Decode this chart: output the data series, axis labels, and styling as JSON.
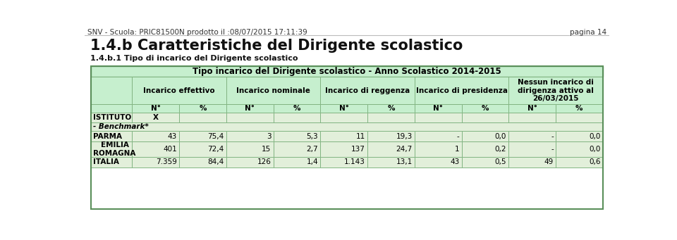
{
  "header_top": "SNV - Scuola: PRIC81500N prodotto il :08/07/2015 17:11:39",
  "header_right": "pagina 14",
  "title1": "1.4.b Caratteristiche del Dirigente scolastico",
  "title2": "1.4.b.1 Tipo di incarico del Dirigente scolastico",
  "table_title": "Tipo incarico del Dirigente scolastico - Anno Scolastico 2014-2015",
  "col_headers": [
    "",
    "Incarico effettivo",
    "Incarico nominale",
    "Incarico di reggenza",
    "Incarico di presidenza",
    "Nessun incarico di\ndirigenza attivo al\n26/03/2015"
  ],
  "sub_headers": [
    "N°",
    "%",
    "N°",
    "%",
    "N°",
    "%",
    "N°",
    "%",
    "N°",
    "%"
  ],
  "istituto_row": [
    "ISTITUTO",
    "X"
  ],
  "benchmark_row": [
    "- Benchmark*"
  ],
  "data_rows": [
    [
      "PARMA",
      "43",
      "75,4",
      "3",
      "5,3",
      "11",
      "19,3",
      "-",
      "0,0",
      "-",
      "0,0"
    ],
    [
      "EMILIA\nROMAGNA",
      "401",
      "72,4",
      "15",
      "2,7",
      "137",
      "24,7",
      "1",
      "0,2",
      "-",
      "0,0"
    ],
    [
      "ITALIA",
      "7.359",
      "84,4",
      "126",
      "1,4",
      "1.143",
      "13,1",
      "43",
      "0,5",
      "49",
      "0,6"
    ]
  ],
  "bg_header": "#c6efce",
  "bg_data": "#e2efda",
  "border_color": "#82b582",
  "outer_border": "#5a8f5a",
  "header_line_color": "#888888",
  "text_dark": "#222222",
  "text_black": "#000000"
}
